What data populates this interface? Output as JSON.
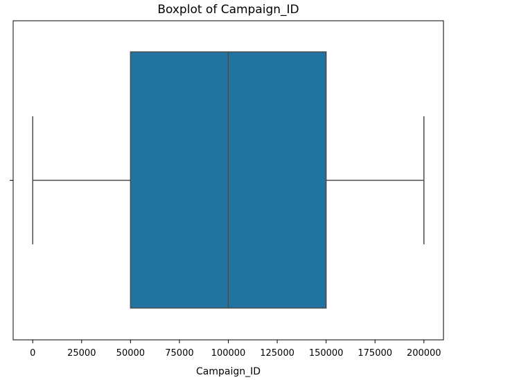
{
  "chart_data": {
    "type": "boxplot",
    "title": "Boxplot of Campaign_ID",
    "xlabel": "Campaign_ID",
    "ylabel": "",
    "orientation": "horizontal",
    "xlim": [
      -10000,
      210000
    ],
    "x_ticks": [
      0,
      25000,
      50000,
      75000,
      100000,
      125000,
      150000,
      175000,
      200000
    ],
    "x_tick_labels": [
      "0",
      "25000",
      "50000",
      "75000",
      "100000",
      "125000",
      "150000",
      "175000",
      "200000"
    ],
    "box": {
      "min": 0,
      "q1": 50000,
      "median": 100000,
      "q3": 150000,
      "max": 200000
    },
    "grid": false,
    "colors": {
      "box_fill": "#2274a0",
      "line": "#4a4a4a",
      "frame": "#000000"
    }
  }
}
